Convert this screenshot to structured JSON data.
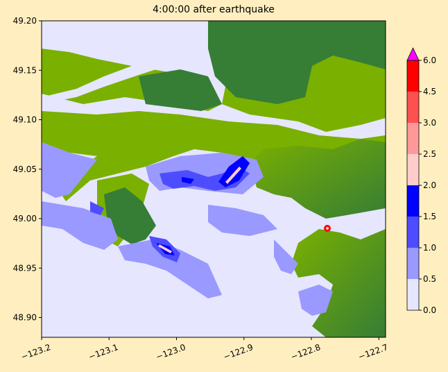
{
  "chart_data": {
    "type": "heatmap",
    "title": "4:00:00 after earthquake",
    "xlabel": "",
    "ylabel": "",
    "xlim": [
      -123.2,
      -122.69
    ],
    "ylim": [
      48.88,
      49.2
    ],
    "x_ticks": [
      -123.2,
      -123.1,
      -123.0,
      -122.9,
      -122.8,
      -122.7
    ],
    "x_tick_labels": [
      "−123.2",
      "−123.1",
      "−123.0",
      "−122.9",
      "−122.8",
      "−122.7"
    ],
    "y_ticks": [
      48.9,
      48.95,
      49.0,
      49.05,
      49.1,
      49.15,
      49.2
    ],
    "y_tick_labels": [
      "48.90",
      "48.95",
      "49.00",
      "49.05",
      "49.10",
      "49.15",
      "49.20"
    ],
    "colorbar": {
      "levels": [
        0.0,
        0.5,
        1.0,
        1.5,
        2.0,
        2.5,
        3.0,
        4.5,
        6.0
      ],
      "labels": [
        "0.0",
        "0.5",
        "1.0",
        "1.5",
        "2.0",
        "2.5",
        "3.0",
        "4.5",
        "6.0"
      ],
      "colors": [
        "#e6e6ff",
        "#9999ff",
        "#4d4dff",
        "#0000ff",
        "#ffcccc",
        "#ff9999",
        "#ff5050",
        "#ff0000"
      ],
      "extend_color": "#ff00ff",
      "extend": "max"
    },
    "land_colors": {
      "lowland": "#7ab000",
      "upland": "#367d35"
    },
    "water_color": "#e6e6ff"
  }
}
